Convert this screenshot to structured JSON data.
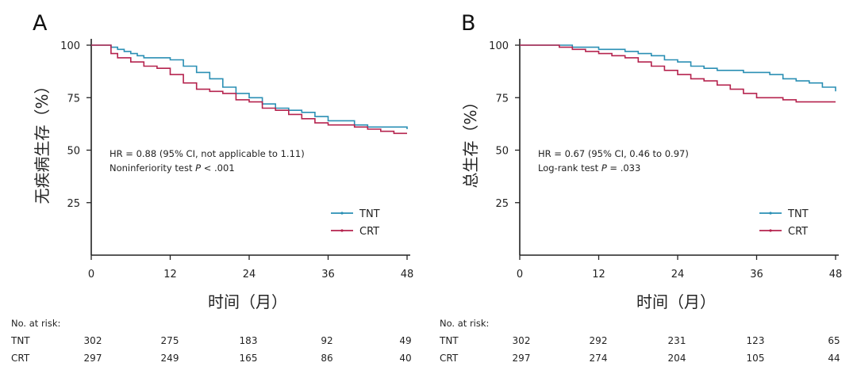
{
  "colors": {
    "tnt": "#2a8fb4",
    "crt": "#b5234e",
    "axis": "#222222"
  },
  "chart_data": [
    {
      "type": "line",
      "panel_label": "A",
      "ylabel": "无疾病生存（%）",
      "xlabel": "时间（月）",
      "xlim": [
        0,
        48
      ],
      "ylim": [
        0,
        100
      ],
      "xticks": [
        0,
        12,
        24,
        36,
        48
      ],
      "yticks": [
        25,
        50,
        75,
        100
      ],
      "annotation_line1": "HR = 0.88 (95% CI, not applicable to 1.11)",
      "annotation_line2_prefix": "Noninferiority test ",
      "annotation_line2_italic": "P",
      "annotation_line2_suffix": " < .001",
      "series": [
        {
          "name": "TNT",
          "color": "#2a8fb4",
          "x": [
            0,
            2,
            3,
            4,
            5,
            6,
            7,
            8,
            10,
            12,
            14,
            16,
            18,
            20,
            22,
            24,
            26,
            28,
            30,
            32,
            34,
            36,
            38,
            40,
            42,
            44,
            46,
            48
          ],
          "y": [
            100,
            100,
            99,
            98,
            97,
            96,
            95,
            94,
            94,
            93,
            90,
            87,
            84,
            80,
            77,
            75,
            72,
            70,
            69,
            68,
            66,
            64,
            64,
            62,
            61,
            61,
            61,
            60
          ]
        },
        {
          "name": "CRT",
          "color": "#b5234e",
          "x": [
            0,
            2,
            3,
            4,
            6,
            8,
            10,
            12,
            14,
            16,
            18,
            20,
            22,
            24,
            26,
            28,
            30,
            32,
            34,
            36,
            38,
            40,
            42,
            44,
            46,
            48
          ],
          "y": [
            100,
            100,
            96,
            94,
            92,
            90,
            89,
            86,
            82,
            79,
            78,
            77,
            74,
            73,
            70,
            69,
            67,
            65,
            63,
            62,
            62,
            61,
            60,
            59,
            58,
            58
          ]
        }
      ],
      "risk_header": "No. at risk:",
      "risk_rows": [
        {
          "label": "TNT",
          "values": [
            "302",
            "275",
            "183",
            "92",
            "49"
          ]
        },
        {
          "label": "CRT",
          "values": [
            "297",
            "249",
            "165",
            "86",
            "40"
          ]
        }
      ]
    },
    {
      "type": "line",
      "panel_label": "B",
      "ylabel": "总生存（%）",
      "xlabel": "时间（月）",
      "xlim": [
        0,
        48
      ],
      "ylim": [
        0,
        100
      ],
      "xticks": [
        0,
        12,
        24,
        36,
        48
      ],
      "yticks": [
        25,
        50,
        75,
        100
      ],
      "annotation_line1": "HR = 0.67 (95% CI, 0.46 to 0.97)",
      "annotation_line2_prefix": "Log-rank test ",
      "annotation_line2_italic": "P",
      "annotation_line2_suffix": " = .033",
      "series": [
        {
          "name": "TNT",
          "color": "#2a8fb4",
          "x": [
            0,
            4,
            6,
            8,
            10,
            12,
            14,
            16,
            18,
            20,
            22,
            24,
            26,
            28,
            30,
            32,
            34,
            36,
            38,
            40,
            42,
            44,
            46,
            48
          ],
          "y": [
            100,
            100,
            100,
            99,
            99,
            98,
            98,
            97,
            96,
            95,
            93,
            92,
            90,
            89,
            88,
            88,
            87,
            87,
            86,
            84,
            83,
            82,
            80,
            78
          ]
        },
        {
          "name": "CRT",
          "color": "#b5234e",
          "x": [
            0,
            4,
            6,
            8,
            10,
            12,
            14,
            16,
            18,
            20,
            22,
            24,
            26,
            28,
            30,
            32,
            34,
            36,
            38,
            40,
            42,
            44,
            46,
            48
          ],
          "y": [
            100,
            100,
            99,
            98,
            97,
            96,
            95,
            94,
            92,
            90,
            88,
            86,
            84,
            83,
            81,
            79,
            77,
            75,
            75,
            74,
            73,
            73,
            73,
            73
          ]
        }
      ],
      "risk_header": "No. at risk:",
      "risk_rows": [
        {
          "label": "TNT",
          "values": [
            "302",
            "292",
            "231",
            "123",
            "65"
          ]
        },
        {
          "label": "CRT",
          "values": [
            "297",
            "274",
            "204",
            "105",
            "44"
          ]
        }
      ]
    }
  ]
}
